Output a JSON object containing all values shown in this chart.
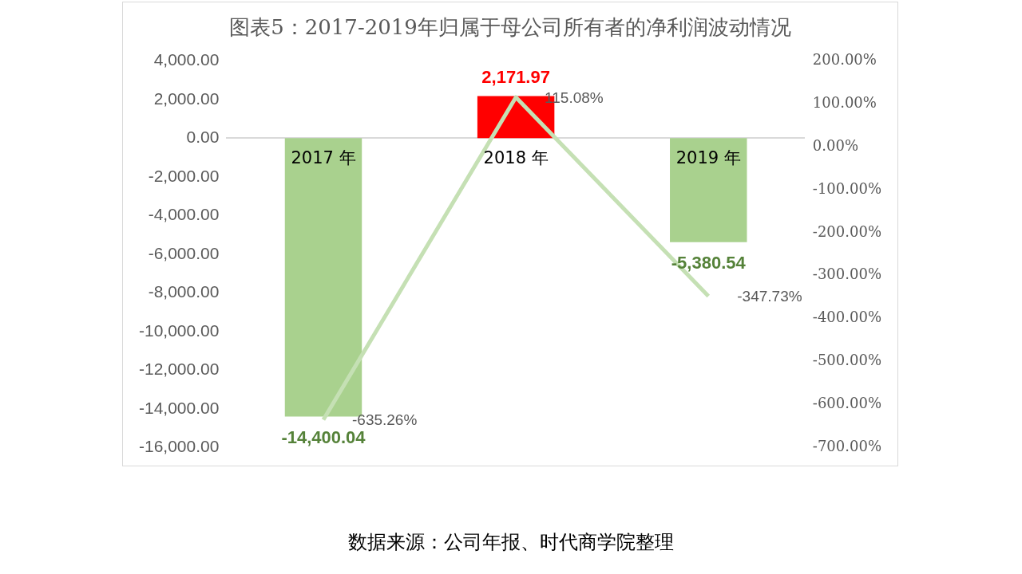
{
  "chart_data": {
    "type": "bar",
    "title": "图表5：2017-2019年归属于母公司所有者的净利润波动情况",
    "categories": [
      "2017 年",
      "2018 年",
      "2019 年"
    ],
    "series": [
      {
        "colors": [
          "#a9d18e",
          "#ff0000",
          "#a9d18e"
        ],
        "values": [
          -14400.04,
          2171.97,
          -5380.54
        ],
        "value_labels": [
          "-14,400.04",
          "2,171.97",
          "-5,380.54"
        ]
      },
      {
        "type": "line",
        "axis": "y2",
        "color": "#c5e0b4",
        "values": [
          -635.26,
          115.08,
          -347.73
        ],
        "value_labels": [
          "-635.26%",
          "115.08%",
          "-347.73%"
        ]
      }
    ],
    "ylim": [
      -16000,
      4000
    ],
    "yticks": [
      {
        "value": -16000,
        "label": "-16,000.00"
      },
      {
        "value": -14000,
        "label": "-14,000.00"
      },
      {
        "value": -12000,
        "label": "-12,000.00"
      },
      {
        "value": -10000,
        "label": "-10,000.00"
      },
      {
        "value": -8000,
        "label": "-8,000.00"
      },
      {
        "value": -6000,
        "label": "-6,000.00"
      },
      {
        "value": -4000,
        "label": "-4,000.00"
      },
      {
        "value": -2000,
        "label": "-2,000.00"
      },
      {
        "value": 0,
        "label": "0.00"
      },
      {
        "value": 2000,
        "label": "2,000.00"
      },
      {
        "value": 4000,
        "label": "4,000.00"
      }
    ],
    "y2lim": [
      -700,
      200
    ],
    "y2ticks": [
      {
        "value": -700,
        "label": "-700.00%"
      },
      {
        "value": -600,
        "label": "-600.00%"
      },
      {
        "value": -500,
        "label": "-500.00%"
      },
      {
        "value": -400,
        "label": "-400.00%"
      },
      {
        "value": -300,
        "label": "-300.00%"
      },
      {
        "value": -200,
        "label": "-200.00%"
      },
      {
        "value": -100,
        "label": "-100.00%"
      },
      {
        "value": 0,
        "label": "0.00%"
      },
      {
        "value": 100,
        "label": "100.00%"
      },
      {
        "value": 200,
        "label": "200.00%"
      }
    ],
    "grid": false,
    "legend": false,
    "marker": "none",
    "line_style": "solid",
    "annotations": [
      "数据来源：公司年报、时代商学院整理"
    ]
  }
}
